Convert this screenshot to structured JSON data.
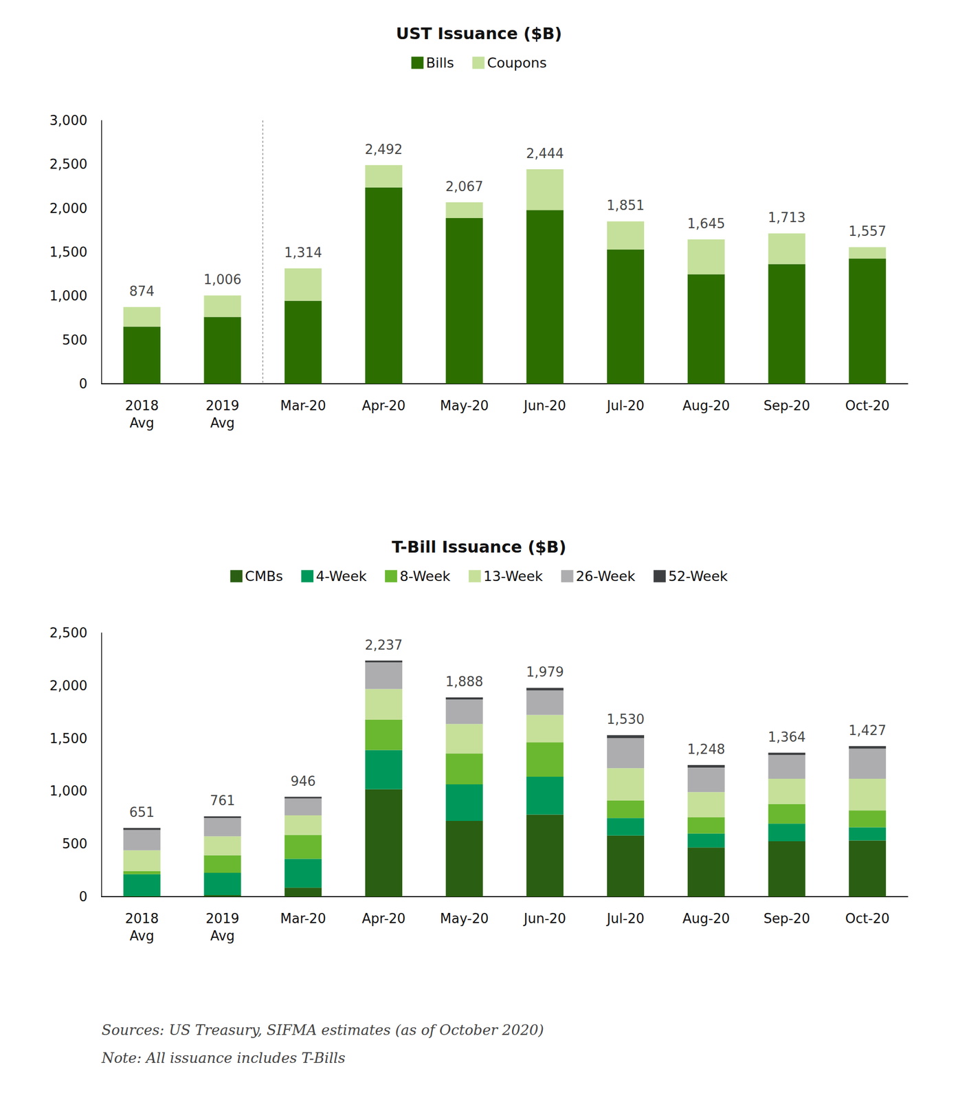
{
  "chart_data": [
    {
      "type": "bar",
      "title": "UST Issuance ($B)",
      "stacked": true,
      "legend": "top",
      "grid": false,
      "categories": [
        "2018 Avg",
        "2019 Avg",
        "Mar-20",
        "Apr-20",
        "May-20",
        "Jun-20",
        "Jul-20",
        "Aug-20",
        "Sep-20",
        "Oct-20"
      ],
      "series": [
        {
          "name": "Bills",
          "color": "#2d6e00",
          "values": [
            651,
            761,
            946,
            2237,
            1888,
            1979,
            1530,
            1248,
            1364,
            1427
          ]
        },
        {
          "name": "Coupons",
          "color": "#c5e09b",
          "values": [
            223,
            245,
            368,
            255,
            179,
            465,
            321,
            397,
            349,
            130
          ]
        }
      ],
      "totals": [
        874,
        1006,
        1314,
        2492,
        2067,
        2444,
        1851,
        1645,
        1713,
        1557
      ],
      "total_labels": [
        "874",
        "1,006",
        "1,314",
        "2,492",
        "2,067",
        "2,444",
        "1,851",
        "1,645",
        "1,713",
        "1,557"
      ],
      "ylim": [
        0,
        3000
      ],
      "yticks": [
        0,
        500,
        {
          "value": 1000,
          "label": "1,000"
        },
        {
          "value": 1500,
          "label": "1,500"
        },
        {
          "value": 2000,
          "label": "2,000"
        },
        {
          "value": 2500,
          "label": "2,500"
        },
        {
          "value": 3000,
          "label": "3,000"
        }
      ]
    },
    {
      "type": "bar",
      "title": "T-Bill Issuance ($B)",
      "stacked": true,
      "legend": "top",
      "grid": false,
      "categories": [
        "2018 Avg",
        "2019 Avg",
        "Mar-20",
        "Apr-20",
        "May-20",
        "Jun-20",
        "Jul-20",
        "Aug-20",
        "Sep-20",
        "Oct-20"
      ],
      "series": [
        {
          "name": "CMBs",
          "color": "#2a5e12",
          "values": [
            5,
            15,
            86,
            1017,
            718,
            778,
            579,
            466,
            525,
            532
          ]
        },
        {
          "name": "4-Week",
          "color": "#00985a",
          "values": [
            208,
            211,
            273,
            373,
            346,
            359,
            166,
            133,
            167,
            126
          ]
        },
        {
          "name": "8-Week",
          "color": "#6ab82f",
          "values": [
            30,
            166,
            226,
            286,
            293,
            326,
            166,
            152,
            186,
            160
          ]
        },
        {
          "name": "13-Week",
          "color": "#c6e09a",
          "values": [
            197,
            180,
            186,
            292,
            279,
            259,
            306,
            240,
            239,
            299
          ]
        },
        {
          "name": "26-Week",
          "color": "#adadaf",
          "values": [
            192,
            173,
            160,
            253,
            233,
            233,
            286,
            233,
            226,
            286
          ]
        },
        {
          "name": "52-Week",
          "color": "#3d3f41",
          "values": [
            19,
            16,
            15,
            16,
            19,
            24,
            27,
            24,
            21,
            24
          ]
        }
      ],
      "totals": [
        651,
        761,
        946,
        2237,
        1888,
        1979,
        1530,
        1248,
        1364,
        1427
      ],
      "total_labels": [
        "651",
        "761",
        "946",
        "2,237",
        "1,888",
        "1,979",
        "1,530",
        "1,248",
        "1,364",
        "1,427"
      ],
      "ylim": [
        0,
        2500
      ],
      "yticks": [
        0,
        500,
        {
          "value": 1000,
          "label": "1,000"
        },
        {
          "value": 1500,
          "label": "1,500"
        },
        {
          "value": 2000,
          "label": "2,000"
        },
        {
          "value": 2500,
          "label": "2,500"
        }
      ]
    }
  ],
  "notes": [
    "Sources: US Treasury, SIFMA estimates (as of October 2020)",
    "Note: All issuance includes T-Bills"
  ]
}
